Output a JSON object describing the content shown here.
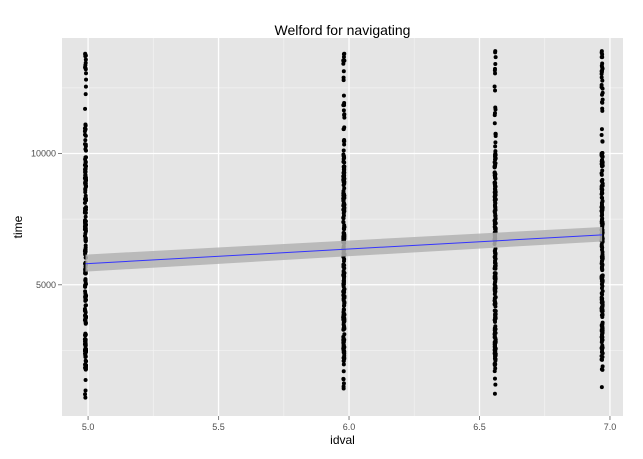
{
  "chart_data": {
    "type": "scatter",
    "title": "Welford for navigating",
    "xlabel": "idval",
    "ylabel": "time",
    "xlim": [
      4.9,
      7.05
    ],
    "ylim": [
      0,
      14400
    ],
    "x_ticks": [
      5.0,
      5.5,
      6.0,
      6.5,
      7.0
    ],
    "x_tick_labels": [
      "5.0",
      "5.5",
      "6.0",
      "6.5",
      "7.0"
    ],
    "y_ticks": [
      5000,
      10000
    ],
    "y_tick_labels": [
      "5000",
      "10000"
    ],
    "grid": true,
    "point_color": "#000000",
    "panel_color": "#e5e5e5",
    "columns": [
      {
        "x": 4.99,
        "ymin": 700,
        "ymax": 13800
      },
      {
        "x": 5.98,
        "ymin": 1050,
        "ymax": 13800
      },
      {
        "x": 6.56,
        "ymin": 850,
        "ymax": 13900
      },
      {
        "x": 6.97,
        "ymin": 1100,
        "ymax": 13900
      }
    ],
    "trend": {
      "x": [
        4.99,
        6.97
      ],
      "y": [
        5800,
        6900
      ],
      "ci_lower": [
        5500,
        6650
      ],
      "ci_upper": [
        6150,
        7200
      ],
      "line_color": "#3333ff",
      "band_color": "#b3b3b3"
    }
  }
}
